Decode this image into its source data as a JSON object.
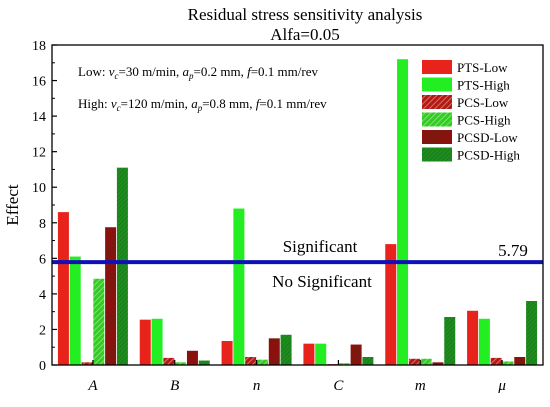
{
  "chart_data": {
    "type": "bar",
    "title": "Residual stress sensitivity analysis",
    "subtitle": "Alfa=0.05",
    "ylabel": "Effect",
    "xlabel": "",
    "ylim": [
      0,
      18
    ],
    "y_ticks": [
      0,
      2,
      4,
      6,
      8,
      10,
      12,
      14,
      16,
      18
    ],
    "categories": [
      "A",
      "B",
      "n",
      "C",
      "m",
      "μ"
    ],
    "series": [
      {
        "name": "PTS-Low",
        "color": "#e8231c",
        "pattern": "solid",
        "values": [
          8.6,
          2.55,
          1.35,
          1.2,
          6.8,
          3.05
        ]
      },
      {
        "name": "PTS-High",
        "color": "#22ee22",
        "pattern": "solid",
        "values": [
          6.1,
          2.6,
          8.8,
          1.2,
          17.2,
          2.6
        ]
      },
      {
        "name": "PCS-Low",
        "color": "#b51a12",
        "pattern": "hatch",
        "values": [
          0.15,
          0.4,
          0.45,
          0.05,
          0.35,
          0.4
        ]
      },
      {
        "name": "PCS-High",
        "color": "#33cc22",
        "pattern": "hatch",
        "values": [
          4.85,
          0.15,
          0.3,
          0.1,
          0.35,
          0.2
        ]
      },
      {
        "name": "PCSD-Low",
        "color": "#8f0f0f",
        "pattern": "dense",
        "values": [
          7.75,
          0.8,
          1.5,
          1.15,
          0.15,
          0.45
        ]
      },
      {
        "name": "PCSD-High",
        "color": "#1e8c1e",
        "pattern": "dense",
        "values": [
          11.1,
          0.25,
          1.7,
          0.45,
          2.7,
          3.6
        ]
      }
    ],
    "threshold": {
      "value": 5.79,
      "label": "5.79",
      "color": "#1010b8"
    },
    "annotations": {
      "above": "Significant",
      "below": "No Significant"
    },
    "conditions": {
      "low": {
        "prefix": "Low: ",
        "vc": "=30 m/min, ",
        "ap": "=0.2 mm, ",
        "f": "=0.1 mm/rev"
      },
      "high": {
        "prefix": "High: ",
        "vc": "=120 m/min, ",
        "ap": "=0.8 mm, ",
        "f": "=0.1 mm/rev"
      }
    },
    "legend_position": "top-right",
    "grid": false
  }
}
